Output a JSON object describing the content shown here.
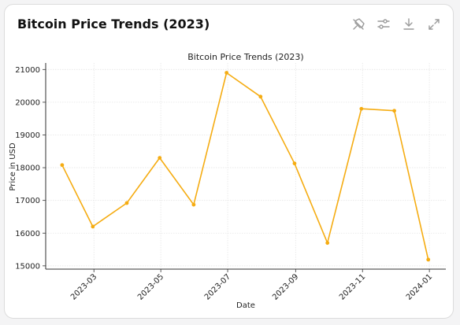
{
  "card": {
    "title": "Bitcoin Price Trends (2023)"
  },
  "toolbar": [
    {
      "icon": "pin-icon"
    },
    {
      "icon": "sliders-icon"
    },
    {
      "icon": "download-icon"
    },
    {
      "icon": "expand-icon"
    }
  ],
  "colors": {
    "line": "#f5ac12",
    "grid": "#e5e5e5",
    "axis": "#333333",
    "icon": "#9a9a9a"
  },
  "chart_data": {
    "type": "line",
    "title": "Bitcoin Price Trends (2023)",
    "xlabel": "Date",
    "ylabel": "Price in USD",
    "grid": true,
    "x": [
      "2023-01-31",
      "2023-02-28",
      "2023-03-31",
      "2023-04-30",
      "2023-05-31",
      "2023-06-30",
      "2023-07-31",
      "2023-08-31",
      "2023-09-30",
      "2023-10-31",
      "2023-11-30",
      "2023-12-31"
    ],
    "series": [
      {
        "values": [
          18080,
          16200,
          16920,
          18300,
          16870,
          20900,
          20170,
          18130,
          15700,
          19800,
          19740,
          15190
        ]
      }
    ],
    "ylim": [
      14900,
      21200
    ],
    "xlim": [
      "2023-01-16",
      "2024-01-16"
    ],
    "yticks": [
      15000,
      16000,
      17000,
      18000,
      19000,
      20000,
      21000
    ],
    "xticks": [
      "2023-03-01",
      "2023-05-01",
      "2023-07-01",
      "2023-09-01",
      "2023-11-01",
      "2024-01-01"
    ],
    "xtick_labels": [
      "2023-03",
      "2023-05",
      "2023-07",
      "2023-09",
      "2023-11",
      "2024-01"
    ]
  }
}
